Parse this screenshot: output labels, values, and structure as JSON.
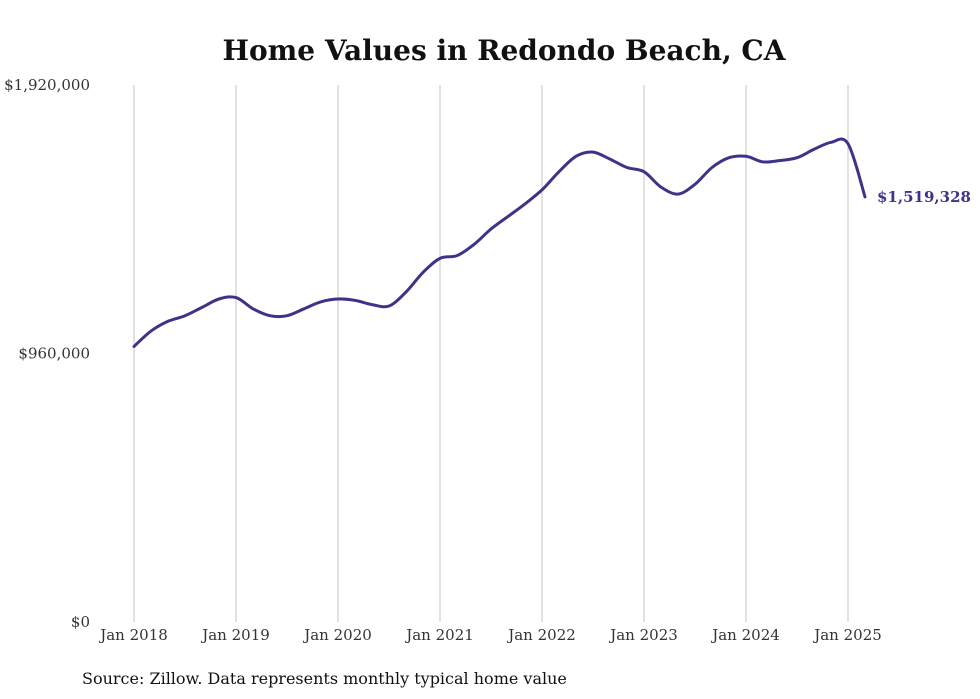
{
  "chart_data": {
    "type": "line",
    "title": "Home Values in Redondo Beach, CA",
    "xlabel": "",
    "ylabel": "",
    "ylim": [
      0,
      1920000
    ],
    "y_ticks": [
      {
        "value": 0,
        "label": "$0"
      },
      {
        "value": 960000,
        "label": "$960,000"
      },
      {
        "value": 1920000,
        "label": "$1,920,000"
      }
    ],
    "x_ticks": [
      {
        "value": "2018-01",
        "label": "Jan 2018"
      },
      {
        "value": "2019-01",
        "label": "Jan 2019"
      },
      {
        "value": "2020-01",
        "label": "Jan 2020"
      },
      {
        "value": "2021-01",
        "label": "Jan 2021"
      },
      {
        "value": "2022-01",
        "label": "Jan 2022"
      },
      {
        "value": "2023-01",
        "label": "Jan 2023"
      },
      {
        "value": "2024-01",
        "label": "Jan 2024"
      },
      {
        "value": "2025-01",
        "label": "Jan 2025"
      }
    ],
    "xlim": [
      "2018-01",
      "2025-03"
    ],
    "grid": {
      "vertical": true,
      "horizontal": false
    },
    "legend": "none",
    "end_label": "$1,519,328",
    "series": [
      {
        "x": [
          "2018-01",
          "2018-03",
          "2018-05",
          "2018-07",
          "2018-09",
          "2018-11",
          "2019-01",
          "2019-03",
          "2019-05",
          "2019-07",
          "2019-09",
          "2019-11",
          "2020-01",
          "2020-03",
          "2020-05",
          "2020-07",
          "2020-09",
          "2020-11",
          "2021-01",
          "2021-03",
          "2021-05",
          "2021-07",
          "2021-09",
          "2021-11",
          "2022-01",
          "2022-03",
          "2022-05",
          "2022-07",
          "2022-09",
          "2022-11",
          "2023-01",
          "2023-03",
          "2023-05",
          "2023-07",
          "2023-09",
          "2023-11",
          "2024-01",
          "2024-03",
          "2024-05",
          "2024-07",
          "2024-09",
          "2024-11",
          "2025-01",
          "2025-03"
        ],
        "values": [
          985000,
          1040000,
          1075000,
          1095000,
          1125000,
          1155000,
          1160000,
          1120000,
          1095000,
          1095000,
          1120000,
          1145000,
          1155000,
          1150000,
          1135000,
          1130000,
          1180000,
          1250000,
          1300000,
          1310000,
          1350000,
          1405000,
          1450000,
          1495000,
          1545000,
          1610000,
          1665000,
          1680000,
          1655000,
          1625000,
          1610000,
          1555000,
          1530000,
          1565000,
          1625000,
          1660000,
          1665000,
          1645000,
          1650000,
          1660000,
          1690000,
          1715000,
          1710000,
          1520000
        ]
      }
    ]
  },
  "source_text": "Source: Zillow. Data represents monthly typical home value",
  "colors": {
    "line": "#3c3489",
    "grid": "#c4c4c4",
    "text": "#111111"
  }
}
